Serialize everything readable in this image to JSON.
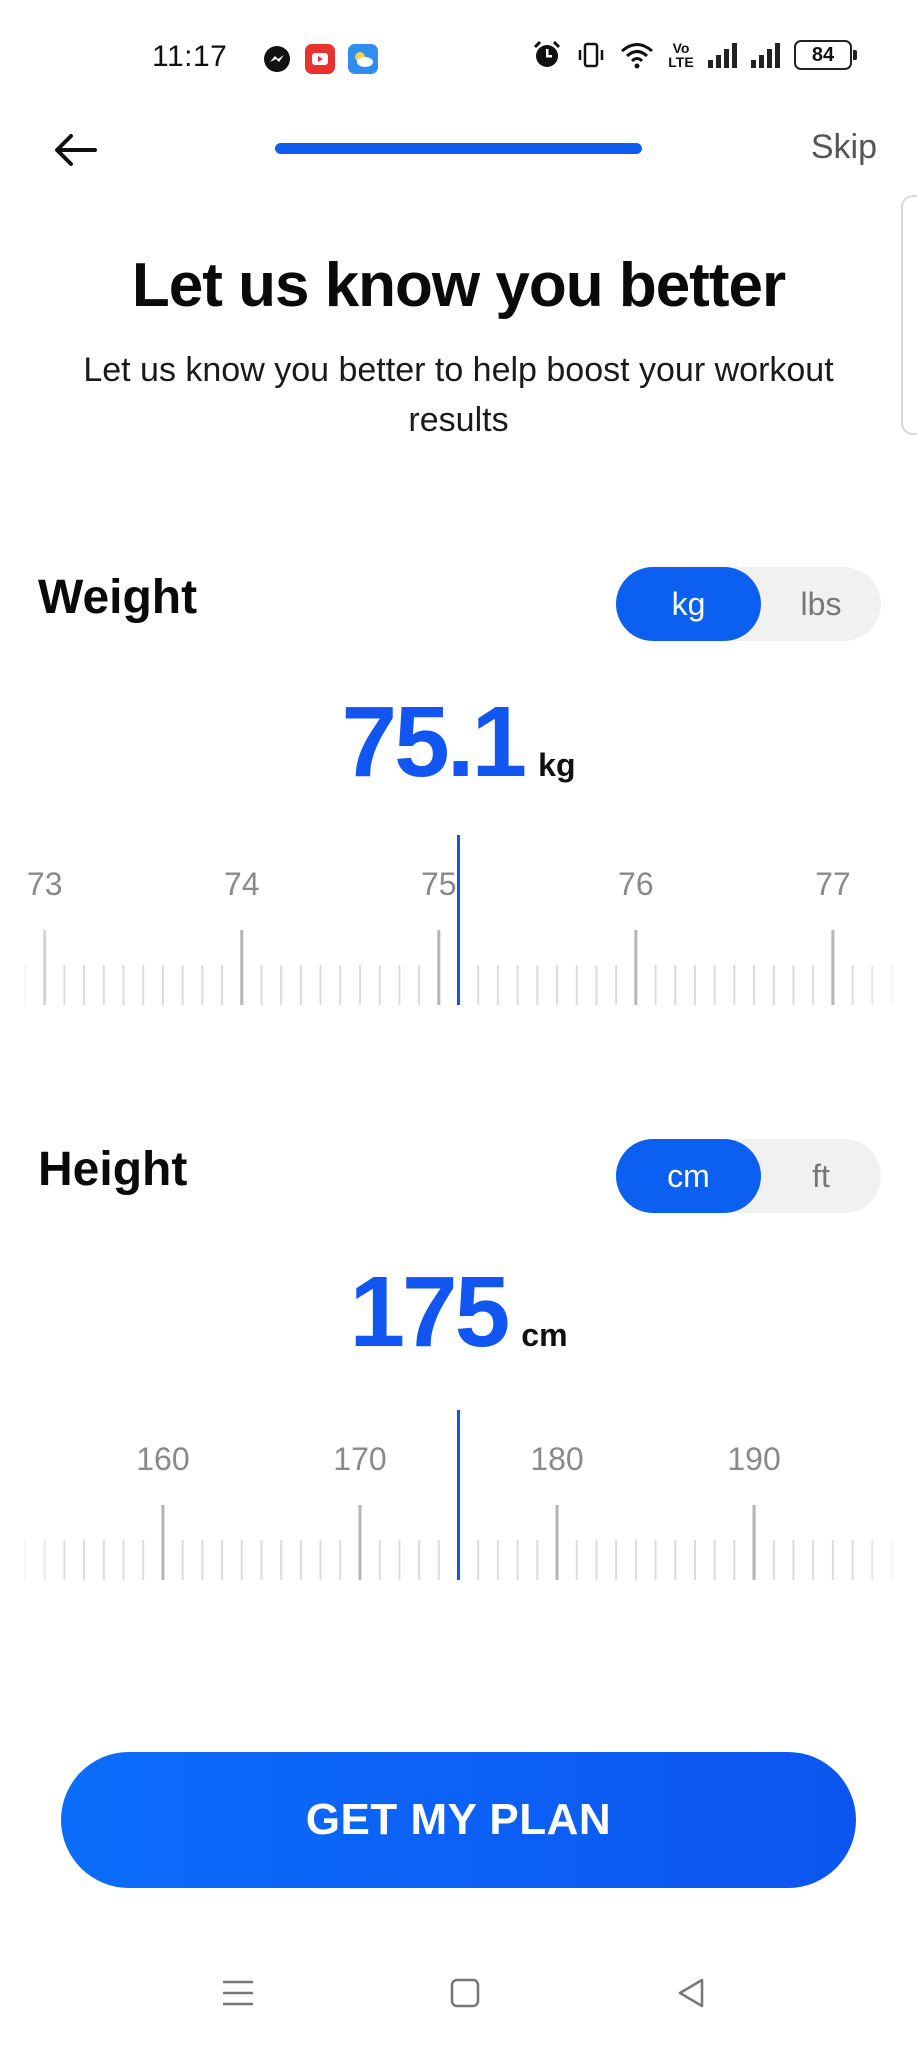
{
  "status_bar": {
    "time": "11:17",
    "battery": "84",
    "volte_label": "Vo LTE"
  },
  "nav": {
    "skip_label": "Skip",
    "progress": 1.0
  },
  "heading": {
    "title": "Let us know you better",
    "subtitle": "Let us know you better to help boost your workout results"
  },
  "weight": {
    "label": "Weight",
    "units": [
      "kg",
      "lbs"
    ],
    "selected_unit": "kg",
    "value": "75.1",
    "unit": "kg",
    "ruler_labels": [
      "73",
      "74",
      "75",
      "76",
      "77"
    ],
    "ruler_min": 72.9,
    "ruler_max": 77.3,
    "ruler_start": 73,
    "ruler_major_step": 1,
    "ruler_minor_step": 0.1
  },
  "height": {
    "label": "Height",
    "units": [
      "cm",
      "ft"
    ],
    "selected_unit": "cm",
    "value": "175",
    "unit": "cm",
    "ruler_labels": [
      "160",
      "170",
      "180",
      "190"
    ],
    "ruler_min": 153,
    "ruler_max": 197,
    "ruler_start": 160,
    "ruler_major_step": 10,
    "ruler_minor_step": 1
  },
  "cta": {
    "label": "GET MY PLAN"
  },
  "colors": {
    "accent": "#0b5ff1",
    "value": "#1256f2"
  }
}
